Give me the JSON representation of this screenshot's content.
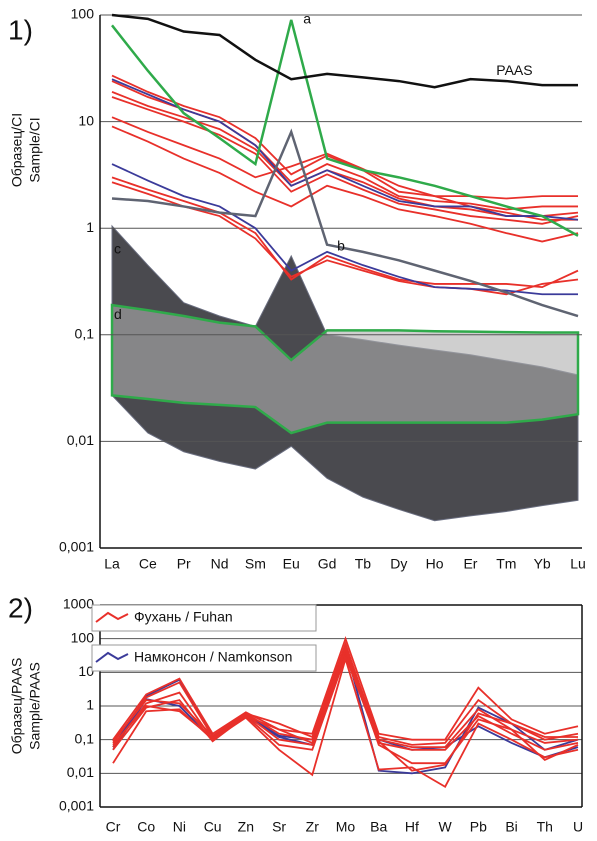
{
  "chart_data": [
    {
      "type": "line",
      "panel": "1)",
      "ylabel": [
        "Образец/CI",
        "Sample/CI"
      ],
      "log_y": true,
      "grid": true,
      "categories": [
        "La",
        "Ce",
        "Pr",
        "Nd",
        "Sm",
        "Eu",
        "Gd",
        "Tb",
        "Dy",
        "Ho",
        "Er",
        "Tm",
        "Yb",
        "Lu"
      ],
      "ylim": [
        0.001,
        100
      ],
      "yticks": [
        {
          "value": 0.001,
          "label": "0,001"
        },
        {
          "value": 0.01,
          "label": "0,01"
        },
        {
          "value": 0.1,
          "label": "0,1"
        },
        1,
        10,
        100
      ],
      "series": [
        {
          "type": "area",
          "name": "c",
          "color": "#4a4a4f",
          "upper": [
            1.05,
            0.45,
            0.2,
            0.15,
            0.12,
            0.55,
            0.1,
            0.09,
            0.08,
            0.072,
            0.065,
            0.057,
            0.05,
            0.042
          ],
          "lower": [
            0.027,
            0.012,
            0.008,
            0.0065,
            0.0055,
            0.009,
            0.0045,
            0.003,
            0.0023,
            0.0018,
            0.002,
            0.0022,
            0.0025,
            0.0028
          ]
        },
        {
          "type": "area",
          "name": "d",
          "color": "#2faa4a",
          "upper": [
            0.19,
            0.17,
            0.15,
            0.13,
            0.12,
            0.058,
            0.11,
            0.11,
            0.11,
            0.108,
            0.107,
            0.106,
            0.105,
            0.105
          ],
          "lower": [
            0.027,
            0.025,
            0.023,
            0.022,
            0.021,
            0.012,
            0.015,
            0.015,
            0.015,
            0.015,
            0.015,
            0.015,
            0.016,
            0.018
          ]
        },
        {
          "color": "#e8302a",
          "values": [
            27,
            19,
            14,
            11,
            7,
            3.2,
            4.8,
            3.5,
            2.2,
            2,
            2,
            1.9,
            2,
            2
          ]
        },
        {
          "color": "#e8302a",
          "values": [
            24,
            17,
            13,
            10,
            6,
            2.7,
            4,
            3,
            2,
            1.8,
            1.7,
            1.5,
            1.6,
            1.6
          ]
        },
        {
          "color": "#e8302a",
          "values": [
            19,
            14,
            11,
            8.5,
            5.5,
            2.5,
            3.5,
            2.7,
            1.9,
            1.6,
            1.5,
            1.3,
            1.3,
            1.4
          ]
        },
        {
          "color": "#e8302a",
          "values": [
            17,
            13,
            10,
            7.5,
            5,
            2.2,
            3.2,
            2.3,
            1.7,
            1.5,
            1.3,
            1.2,
            1.1,
            1.3
          ]
        },
        {
          "color": "#e8302a",
          "values": [
            11,
            8,
            6,
            4.5,
            3,
            3.8,
            5,
            3.6,
            2.5,
            2,
            1.6,
            1.4,
            1.2,
            1.2
          ]
        },
        {
          "color": "#e8302a",
          "values": [
            9,
            6.5,
            4.5,
            3.3,
            2.2,
            1.6,
            2.5,
            2,
            1.5,
            1.3,
            1.1,
            0.9,
            0.75,
            0.9
          ]
        },
        {
          "color": "#e8302a",
          "values": [
            3,
            2.3,
            1.8,
            1.4,
            0.9,
            0.33,
            0.55,
            0.42,
            0.33,
            0.3,
            0.3,
            0.3,
            0.28,
            0.4
          ]
        },
        {
          "color": "#e8302a",
          "values": [
            2.7,
            2.1,
            1.6,
            1.3,
            0.8,
            0.35,
            0.5,
            0.4,
            0.32,
            0.28,
            0.27,
            0.24,
            0.3,
            0.33
          ]
        },
        {
          "color": "#3b3b9a",
          "values": [
            25,
            18,
            13,
            10,
            6,
            2.5,
            3.5,
            2.5,
            1.8,
            1.6,
            1.6,
            1.3,
            1.3,
            1.2
          ]
        },
        {
          "color": "#3b3b9a",
          "values": [
            4,
            2.8,
            2,
            1.6,
            1,
            0.4,
            0.6,
            0.45,
            0.35,
            0.28,
            0.27,
            0.26,
            0.24,
            0.24
          ]
        },
        {
          "name": "b",
          "color": "#5f6472",
          "values": [
            1.9,
            1.8,
            1.6,
            1.4,
            1.3,
            8,
            0.7,
            0.6,
            0.5,
            0.4,
            0.32,
            0.25,
            0.19,
            0.15
          ]
        },
        {
          "name": "a",
          "color": "#2faa4a",
          "values": [
            80,
            30,
            12,
            7,
            4,
            90,
            4.5,
            3.5,
            3,
            2.5,
            2,
            1.6,
            1.3,
            0.85
          ]
        },
        {
          "name": "PAAS",
          "color": "#111111",
          "values": [
            100,
            92,
            70,
            65,
            38,
            25,
            28,
            26,
            24,
            21,
            25,
            24,
            22,
            22
          ]
        }
      ]
    },
    {
      "type": "line",
      "panel": "2)",
      "ylabel": [
        "Образец/PAAS",
        "Sample/PAAS"
      ],
      "log_y": true,
      "grid": true,
      "categories": [
        "Cr",
        "Co",
        "Ni",
        "Cu",
        "Zn",
        "Sr",
        "Zr",
        "Mo",
        "Ba",
        "Hf",
        "W",
        "Pb",
        "Bi",
        "Th",
        "U"
      ],
      "ylim": [
        0.001,
        1000
      ],
      "yticks": [
        {
          "value": 0.001,
          "label": "0,001"
        },
        {
          "value": 0.01,
          "label": "0,01"
        },
        {
          "value": 0.1,
          "label": "0,1"
        },
        1,
        10,
        100,
        1000
      ],
      "legend": [
        {
          "name": "Фухань / Fuhan",
          "color": "#e8302a"
        },
        {
          "name": "Намконсон / Namkonson",
          "color": "#3b3b9a"
        }
      ],
      "series": [
        {
          "color": "#3b3b9a",
          "values": [
            0.06,
            2,
            6,
            0.13,
            0.55,
            0.13,
            0.1,
            50,
            0.012,
            0.01,
            0.015,
            0.9,
            0.3,
            0.05,
            0.1
          ]
        },
        {
          "color": "#3b3b9a",
          "values": [
            0.05,
            1.6,
            1,
            0.1,
            0.5,
            0.12,
            0.07,
            40,
            0.1,
            0.05,
            0.06,
            0.25,
            0.08,
            0.03,
            0.06
          ]
        },
        {
          "color": "#e8302a",
          "values": [
            0.1,
            2.2,
            6.5,
            0.15,
            0.65,
            0.2,
            0.15,
            100,
            0.15,
            0.1,
            0.1,
            3.5,
            0.4,
            0.15,
            0.25
          ]
        },
        {
          "color": "#e8302a",
          "values": [
            0.08,
            1.8,
            5,
            0.12,
            0.6,
            0.15,
            0.1,
            60,
            0.12,
            0.07,
            0.08,
            1.5,
            0.3,
            0.1,
            0.15
          ]
        },
        {
          "color": "#e8302a",
          "values": [
            0.06,
            1.2,
            2.5,
            0.1,
            0.55,
            0.1,
            0.07,
            40,
            0.1,
            0.06,
            0.06,
            0.8,
            0.2,
            0.08,
            0.1
          ]
        },
        {
          "color": "#e8302a",
          "values": [
            0.05,
            0.9,
            1.5,
            0.09,
            0.5,
            0.07,
            0.05,
            30,
            0.08,
            0.05,
            0.05,
            0.5,
            0.15,
            0.05,
            0.08
          ]
        },
        {
          "color": "#e8302a",
          "values": [
            0.02,
            0.7,
            0.8,
            0.1,
            0.45,
            0.05,
            0.009,
            25,
            0.013,
            0.015,
            0.004,
            0.3,
            0.1,
            0.03,
            0.05
          ]
        },
        {
          "color": "#e8302a",
          "values": [
            0.09,
            1.5,
            1.2,
            0.13,
            0.6,
            0.3,
            0.12,
            70,
            0.09,
            0.012,
            0.018,
            0.6,
            0.3,
            0.12,
            0.12
          ]
        },
        {
          "color": "#e8302a",
          "values": [
            0.07,
            1,
            0.7,
            0.11,
            0.5,
            0.2,
            0.08,
            50,
            0.07,
            0.02,
            0.02,
            0.4,
            0.2,
            0.025,
            0.07
          ]
        }
      ]
    }
  ]
}
